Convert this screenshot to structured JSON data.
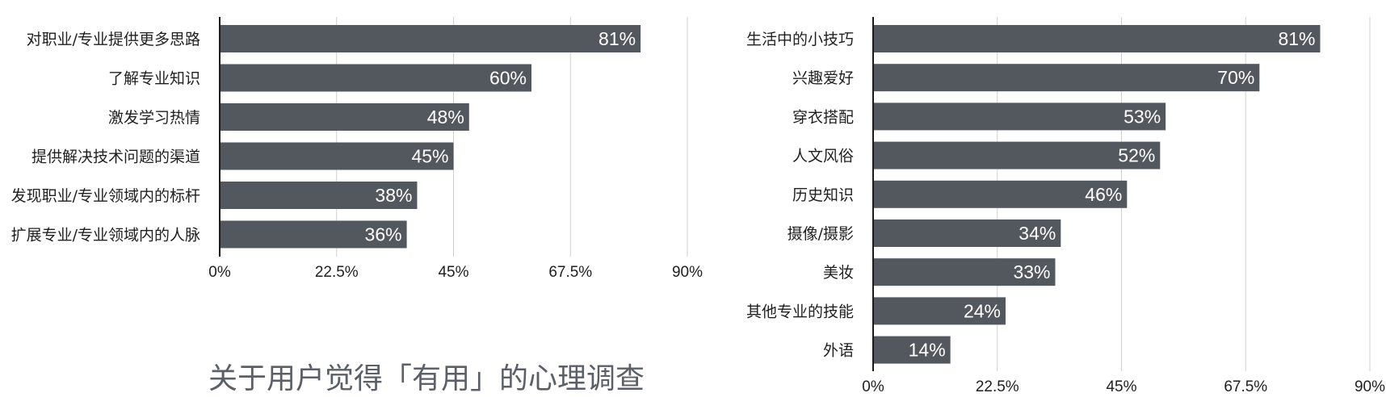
{
  "caption": "关于用户觉得「有用」的心理调查",
  "colors": {
    "bar": "#53585e",
    "grid": "#cfcfcf",
    "axis": "#1a1a1a",
    "text": "#1f1f1f",
    "value_text": "#ffffff",
    "caption": "#5b6068"
  },
  "chart_data": [
    {
      "type": "bar",
      "orientation": "horizontal",
      "categories": [
        "对职业/专业提供更多思路",
        "了解专业知识",
        "激发学习热情",
        "提供解决技术问题的渠道",
        "发现职业/专业领域内的标杆",
        "扩展专业/专业领域内的人脉"
      ],
      "values": [
        81,
        60,
        48,
        45,
        38,
        36
      ],
      "value_labels": [
        "81%",
        "60%",
        "48%",
        "45%",
        "38%",
        "36%"
      ],
      "xlim": [
        0,
        90
      ],
      "xticks": [
        0,
        22.5,
        45,
        67.5,
        90
      ],
      "xtick_labels": [
        "0%",
        "22.5%",
        "45%",
        "67.5%",
        "90%"
      ],
      "grid": true
    },
    {
      "type": "bar",
      "orientation": "horizontal",
      "categories": [
        "生活中的小技巧",
        "兴趣爱好",
        "穿衣搭配",
        "人文风俗",
        "历史知识",
        "摄像/摄影",
        "美妆",
        "其他专业的技能",
        "外语"
      ],
      "values": [
        81,
        70,
        53,
        52,
        46,
        34,
        33,
        24,
        14
      ],
      "value_labels": [
        "81%",
        "70%",
        "53%",
        "52%",
        "46%",
        "34%",
        "33%",
        "24%",
        "14%"
      ],
      "xlim": [
        0,
        90
      ],
      "xticks": [
        0,
        22.5,
        45,
        67.5,
        90
      ],
      "xtick_labels": [
        "0%",
        "22.5%",
        "45%",
        "67.5%",
        "90%"
      ],
      "grid": true
    }
  ]
}
